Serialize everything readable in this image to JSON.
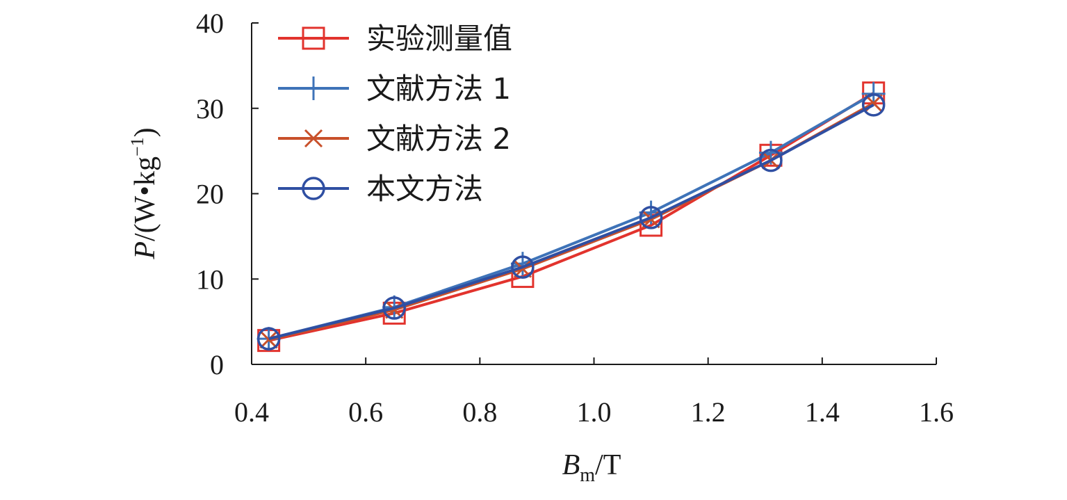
{
  "chart_data": {
    "type": "line",
    "xlabel": {
      "main": "B",
      "sub": "m",
      "unit": "/T"
    },
    "ylabel": {
      "main": "P",
      "unit": "/(W•kg",
      "sup": "−1",
      "close": ")"
    },
    "xlim": [
      0.4,
      1.6
    ],
    "ylim": [
      0,
      40
    ],
    "x_ticks": [
      "0.4",
      "0.6",
      "0.8",
      "1.0",
      "1.2",
      "1.4",
      "1.6"
    ],
    "y_ticks": [
      "0",
      "10",
      "20",
      "30",
      "40"
    ],
    "x": [
      0.43,
      0.65,
      0.875,
      1.1,
      1.31,
      1.49
    ],
    "grid": false,
    "legend_position": "top-left",
    "series": [
      {
        "name": "实验测量值",
        "marker": "square",
        "color": "#e2332d",
        "values": [
          2.8,
          6.0,
          10.3,
          16.3,
          24.5,
          31.8
        ]
      },
      {
        "name": "文献方法 1",
        "marker": "plus",
        "color": "#3e73b8",
        "values": [
          3.0,
          6.7,
          11.8,
          17.8,
          24.8,
          31.7
        ]
      },
      {
        "name": "文献方法 2",
        "marker": "x",
        "color": "#c8502a",
        "values": [
          2.9,
          6.4,
          11.2,
          17.0,
          23.9,
          30.6
        ]
      },
      {
        "name": "本文方法",
        "marker": "circle",
        "color": "#2f4fa2",
        "values": [
          3.0,
          6.6,
          11.4,
          17.2,
          23.9,
          30.4
        ]
      }
    ]
  }
}
